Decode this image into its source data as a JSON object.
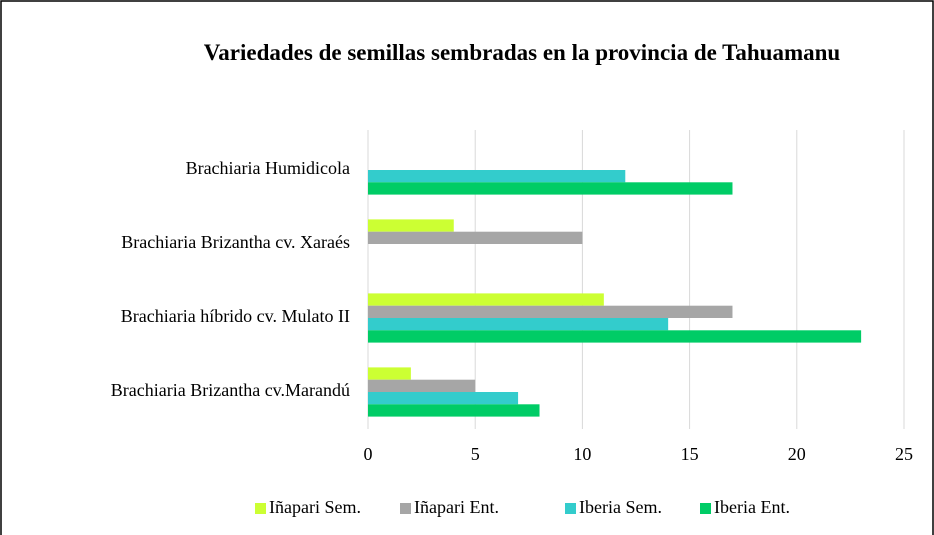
{
  "chart_data": {
    "type": "hbar",
    "title": "Variedades de semillas sembradas en la provincia de Tahuamanu",
    "categories": [
      "Brachiaria Humidicola",
      "Brachiaria Brizantha cv. Xaraés",
      "Brachiaria híbrido cv. Mulato II",
      "Brachiaria Brizantha cv.Marandú"
    ],
    "series": [
      {
        "name": "Iñapari Sem.",
        "color": "#ccff33",
        "values": [
          null,
          4,
          11,
          2
        ]
      },
      {
        "name": "Iñapari Ent.",
        "color": "#a6a6a6",
        "values": [
          null,
          10,
          17,
          5
        ]
      },
      {
        "name": "Iberia Sem.",
        "color": "#33cccc",
        "values": [
          12,
          null,
          14,
          7
        ]
      },
      {
        "name": "Iberia Ent.",
        "color": "#00cc66",
        "values": [
          17,
          null,
          23,
          8
        ]
      }
    ],
    "xlim": [
      0,
      25
    ],
    "xticks": [
      0,
      5,
      10,
      15,
      20,
      25
    ],
    "grid": true,
    "legend": "bottom"
  }
}
